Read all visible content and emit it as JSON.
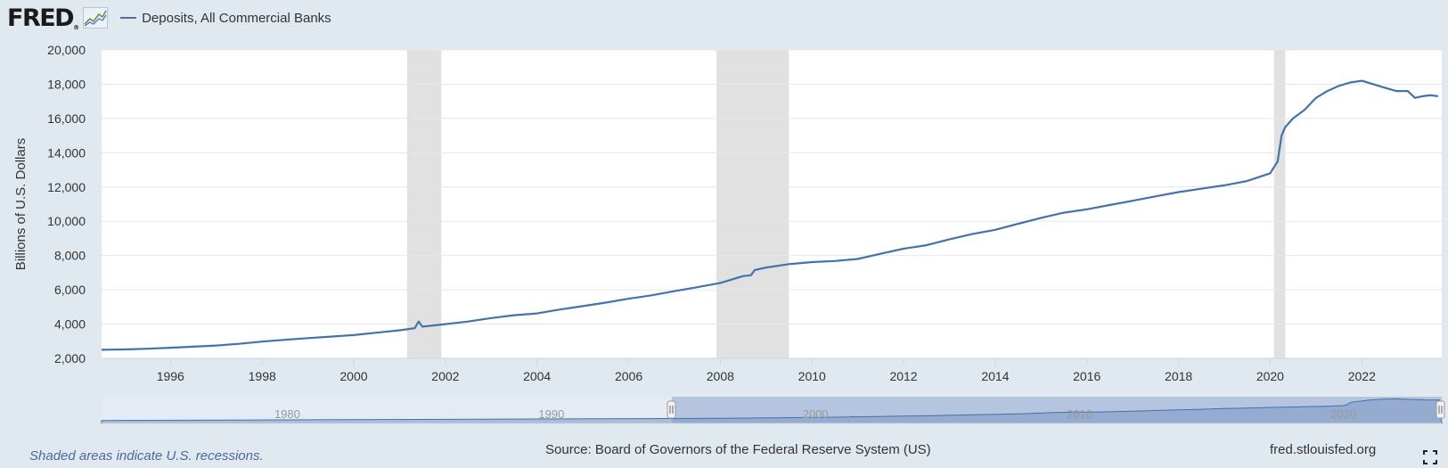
{
  "header": {
    "logo_text": "FRED",
    "logo_mark": "®",
    "logo_icon": "sparkline-icon",
    "series_label": "Deposits, All Commercial Banks"
  },
  "footer": {
    "recession_note": "Shaded areas indicate U.S. recessions.",
    "source": "Source: Board of Governors of the Federal Reserve System (US)",
    "site": "fred.stlouisfed.org",
    "fullscreen_icon": "fullscreen-icon"
  },
  "colors": {
    "line": "#4572a7",
    "recession": "#e1e1e1",
    "background": "#e1e9f0",
    "navigator_fill": "#7b96c2"
  },
  "chart_data": {
    "type": "line",
    "title": "",
    "xlabel": "",
    "ylabel": "Billions of U.S. Dollars",
    "ylim": [
      2000,
      20000
    ],
    "xlim": [
      "1994-07-01",
      "2023-09-30"
    ],
    "grid": true,
    "legend_position": "top-left",
    "y_ticks": [
      "2,000",
      "4,000",
      "6,000",
      "8,000",
      "10,000",
      "12,000",
      "14,000",
      "16,000",
      "18,000",
      "20,000"
    ],
    "x_ticks": [
      "1996",
      "1998",
      "2000",
      "2002",
      "2004",
      "2006",
      "2008",
      "2010",
      "2012",
      "2014",
      "2016",
      "2018",
      "2020",
      "2022"
    ],
    "recessions": [
      [
        "2001-03-01",
        "2001-11-30"
      ],
      [
        "2007-12-01",
        "2009-06-30"
      ],
      [
        "2020-02-01",
        "2020-04-30"
      ]
    ],
    "series": [
      {
        "name": "Deposits, All Commercial Banks",
        "x": [
          "1994-07",
          "1995-01",
          "1995-07",
          "1996-01",
          "1996-07",
          "1997-01",
          "1997-07",
          "1998-01",
          "1998-07",
          "1999-01",
          "1999-07",
          "2000-01",
          "2000-07",
          "2001-01",
          "2001-05",
          "2001-06",
          "2001-07",
          "2002-01",
          "2002-07",
          "2003-01",
          "2003-07",
          "2004-01",
          "2004-07",
          "2005-01",
          "2005-07",
          "2006-01",
          "2006-07",
          "2007-01",
          "2007-07",
          "2008-01",
          "2008-07",
          "2008-09",
          "2008-10",
          "2009-01",
          "2009-07",
          "2010-01",
          "2010-07",
          "2011-01",
          "2011-07",
          "2012-01",
          "2012-07",
          "2013-01",
          "2013-07",
          "2014-01",
          "2014-07",
          "2015-01",
          "2015-07",
          "2016-01",
          "2016-07",
          "2017-01",
          "2017-07",
          "2018-01",
          "2018-07",
          "2019-01",
          "2019-07",
          "2020-01",
          "2020-03",
          "2020-04",
          "2020-05",
          "2020-07",
          "2020-10",
          "2021-01",
          "2021-04",
          "2021-07",
          "2021-10",
          "2022-01",
          "2022-04",
          "2022-07",
          "2022-10",
          "2023-01",
          "2023-03",
          "2023-05",
          "2023-07",
          "2023-09"
        ],
        "values": [
          2500,
          2520,
          2560,
          2620,
          2680,
          2750,
          2850,
          2980,
          3080,
          3180,
          3270,
          3360,
          3500,
          3640,
          3760,
          4150,
          3850,
          4000,
          4150,
          4350,
          4520,
          4620,
          4850,
          5050,
          5250,
          5480,
          5680,
          5920,
          6150,
          6400,
          6800,
          6850,
          7150,
          7300,
          7500,
          7620,
          7680,
          7800,
          8100,
          8400,
          8600,
          8950,
          9250,
          9500,
          9850,
          10200,
          10500,
          10700,
          10950,
          11200,
          11450,
          11700,
          11900,
          12100,
          12350,
          12800,
          13500,
          15000,
          15500,
          16000,
          16500,
          17200,
          17600,
          17900,
          18100,
          18200,
          18000,
          17800,
          17600,
          17600,
          17200,
          17300,
          17350,
          17300
        ]
      }
    ]
  },
  "navigator": {
    "labels": [
      "1980",
      "1990",
      "2000",
      "2010",
      "2020"
    ]
  }
}
